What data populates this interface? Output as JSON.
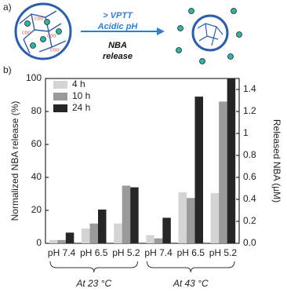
{
  "panel_a_label": "a)",
  "panel_b_label": "b)",
  "diagram": {
    "condition_1": "> VPTT",
    "condition_2": "Acidic pH",
    "result_1": "NBA",
    "result_2": "release",
    "carboxylate": "COO⁻"
  },
  "chart_data": {
    "type": "bar",
    "categories": [
      "pH 7.4",
      "pH 6.5",
      "pH 5.2",
      "pH 7.4",
      "pH 6.5",
      "pH 5.2"
    ],
    "group_labels": [
      "At 23 °C",
      "At 43 °C"
    ],
    "series": [
      {
        "name": "4 h",
        "color": "#d4d4d4",
        "values": [
          2,
          9,
          12,
          5,
          31,
          30.5
        ]
      },
      {
        "name": "10 h",
        "color": "#9a9a9a",
        "values": [
          2,
          12,
          35,
          3,
          27.5,
          86
        ]
      },
      {
        "name": "24 h",
        "color": "#262626",
        "values": [
          6.5,
          20.5,
          34,
          15.5,
          89,
          100
        ]
      }
    ],
    "ylabel": "Normalized NBA release (%)",
    "y2label": "Released NBA (µM)",
    "ylim": [
      0,
      100
    ],
    "yticks": [
      0,
      20,
      40,
      60,
      80,
      100
    ],
    "y2lim": [
      0,
      1.5
    ],
    "y2ticks": [
      {
        "value": 0,
        "label": "0.0"
      },
      0.2,
      0.4,
      0.6,
      0.8,
      1.0,
      1.2,
      1.4
    ]
  }
}
